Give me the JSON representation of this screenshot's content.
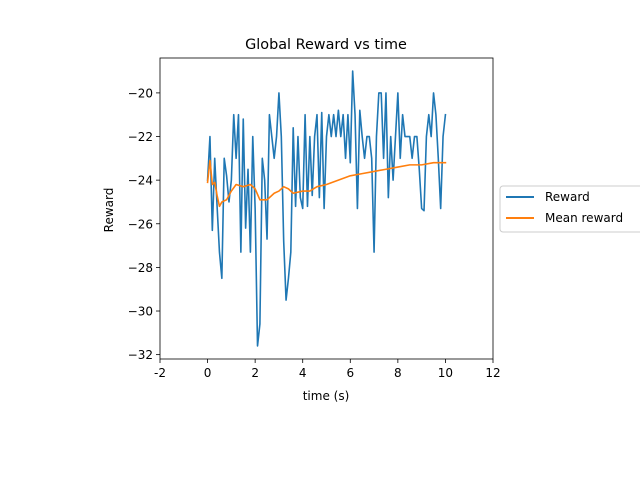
{
  "colors": {
    "reward": "#1f77b4",
    "mean_reward": "#ff7f0e",
    "axes": "#000000",
    "legend_border": "#cccccc",
    "background": "#ffffff"
  },
  "chart_data": {
    "type": "line",
    "title": "Global Reward vs time",
    "xlabel": "time (s)",
    "ylabel": "Reward",
    "xlim": [
      -2,
      12
    ],
    "ylim": [
      -32.2,
      -18.4
    ],
    "x_ticks": [
      -2,
      0,
      2,
      4,
      6,
      8,
      10,
      12
    ],
    "x_tick_labels": [
      "-2",
      "0",
      "2",
      "4",
      "6",
      "8",
      "10",
      "12"
    ],
    "y_ticks": [
      -32,
      -30,
      -28,
      -26,
      -24,
      -22,
      -20
    ],
    "y_tick_labels": [
      "−32",
      "−30",
      "−28",
      "−26",
      "−24",
      "−22",
      "−20"
    ],
    "grid": false,
    "legend_position": "outside-right",
    "series": [
      {
        "name": "Reward",
        "color": "#1f77b4",
        "x": [
          0.0,
          0.1,
          0.2,
          0.3,
          0.4,
          0.5,
          0.6,
          0.7,
          0.8,
          0.9,
          1.0,
          1.1,
          1.2,
          1.3,
          1.4,
          1.5,
          1.6,
          1.7,
          1.8,
          1.9,
          2.0,
          2.1,
          2.2,
          2.3,
          2.4,
          2.5,
          2.6,
          2.7,
          2.8,
          2.9,
          3.0,
          3.1,
          3.2,
          3.3,
          3.4,
          3.5,
          3.6,
          3.7,
          3.8,
          3.9,
          4.0,
          4.1,
          4.2,
          4.3,
          4.4,
          4.5,
          4.6,
          4.7,
          4.8,
          4.9,
          5.0,
          5.1,
          5.2,
          5.3,
          5.4,
          5.5,
          5.6,
          5.7,
          5.8,
          5.9,
          6.0,
          6.1,
          6.2,
          6.3,
          6.4,
          6.5,
          6.6,
          6.7,
          6.8,
          6.9,
          7.0,
          7.1,
          7.2,
          7.3,
          7.4,
          7.5,
          7.6,
          7.7,
          7.8,
          7.9,
          8.0,
          8.1,
          8.2,
          8.3,
          8.4,
          8.5,
          8.6,
          8.7,
          8.8,
          8.9,
          9.0,
          9.1,
          9.2,
          9.3,
          9.4,
          9.5,
          9.6,
          9.7,
          9.8,
          9.9
        ],
        "y": [
          -24.0,
          -22.0,
          -26.3,
          -23.0,
          -25.2,
          -27.3,
          -28.5,
          -23.0,
          -23.8,
          -25.0,
          -24.0,
          -21.0,
          -23.0,
          -21.0,
          -27.3,
          -21.2,
          -26.2,
          -23.5,
          -27.3,
          -22.0,
          -25.3,
          -31.6,
          -30.6,
          -23.0,
          -24.0,
          -26.7,
          -21.0,
          -22.0,
          -23.0,
          -22.0,
          -20.0,
          -22.0,
          -26.8,
          -29.5,
          -28.5,
          -27.3,
          -21.6,
          -25.2,
          -22.0,
          -24.8,
          -25.3,
          -21.0,
          -25.2,
          -22.0,
          -24.7,
          -22.0,
          -21.0,
          -24.8,
          -20.9,
          -25.3,
          -22.0,
          -21.0,
          -22.0,
          -21.0,
          -22.0,
          -20.8,
          -22.0,
          -21.0,
          -23.0,
          -21.0,
          -23.2,
          -19.0,
          -21.0,
          -25.3,
          -20.8,
          -22.0,
          -23.0,
          -22.0,
          -22.0,
          -23.0,
          -27.3,
          -22.0,
          -20.0,
          -20.0,
          -23.0,
          -20.0,
          -24.8,
          -22.0,
          -24.0,
          -22.0,
          -20.0,
          -23.0,
          -21.0,
          -22.0,
          -22.0,
          -22.0,
          -23.0,
          -22.0,
          -22.0,
          -23.5,
          -25.3,
          -25.4,
          -22.0,
          -21.0,
          -22.0,
          -20.0,
          -21.0,
          -23.0,
          -25.3,
          -22.0
        ],
        "x_end": [
          10.0
        ],
        "y_end": [
          -21.0
        ]
      },
      {
        "name": "Mean reward",
        "color": "#ff7f0e",
        "x": [
          0.0,
          0.1,
          0.2,
          0.3,
          0.4,
          0.5,
          0.6,
          0.8,
          1.0,
          1.2,
          1.5,
          1.8,
          2.0,
          2.2,
          2.5,
          2.8,
          3.0,
          3.2,
          3.4,
          3.6,
          4.0,
          4.3,
          4.6,
          5.0,
          5.5,
          6.0,
          6.5,
          7.0,
          7.5,
          8.0,
          8.5,
          9.0,
          9.5,
          10.0
        ],
        "y": [
          -24.1,
          -23.1,
          -24.2,
          -24.1,
          -24.7,
          -25.2,
          -25.0,
          -24.9,
          -24.5,
          -24.2,
          -24.3,
          -24.2,
          -24.4,
          -24.9,
          -24.9,
          -24.6,
          -24.5,
          -24.3,
          -24.4,
          -24.6,
          -24.5,
          -24.5,
          -24.3,
          -24.2,
          -24.0,
          -23.8,
          -23.7,
          -23.6,
          -23.5,
          -23.4,
          -23.3,
          -23.3,
          -23.2,
          -23.2
        ]
      }
    ]
  }
}
